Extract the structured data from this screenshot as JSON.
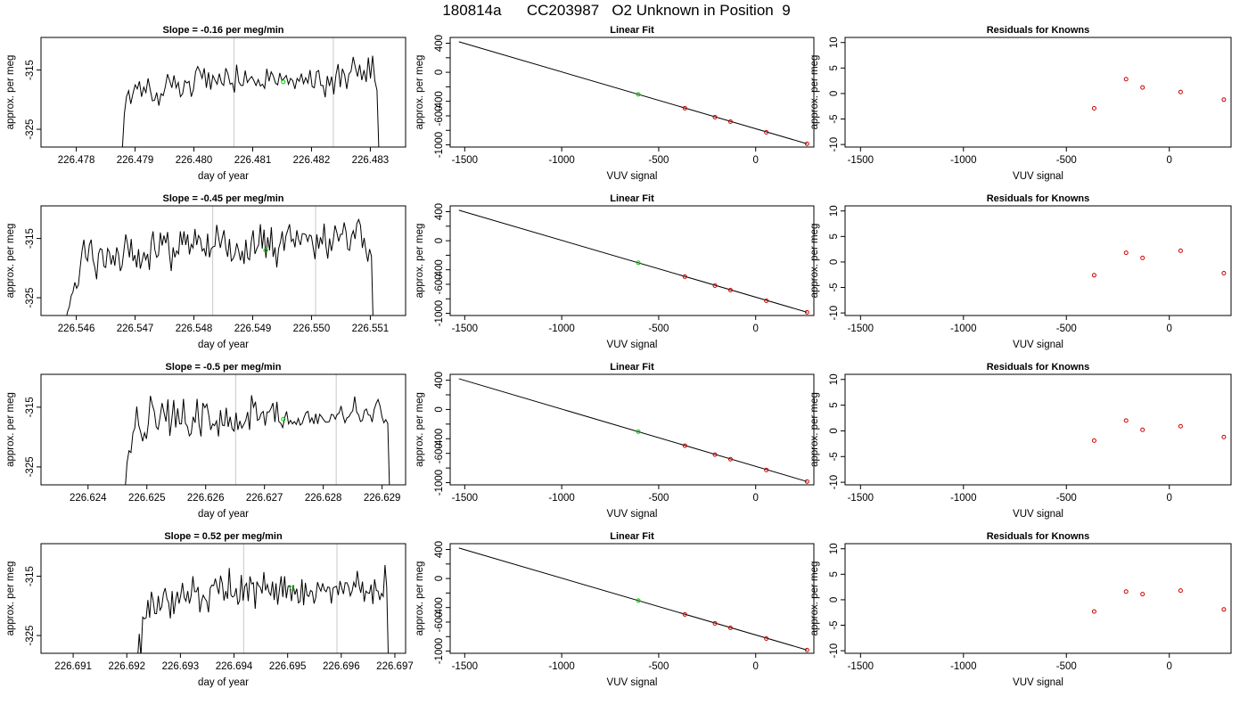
{
  "title": "180814a      CC203987   O2 Unknown in Position  9",
  "colors": {
    "line": "#000000",
    "known": "#cc0000",
    "unknown": "#00cc00",
    "vline": "#c8c8c8"
  },
  "chart_data": [
    {
      "type": "line",
      "panel": "time-1",
      "title": "Slope =  -0.16  per meg/min",
      "xlabel": "day of year",
      "ylabel": "approx. per meg",
      "xlim": [
        226.4774,
        226.4836
      ],
      "ylim": [
        -328.0,
        -309.5
      ],
      "xticks": [
        "226.478",
        "226.479",
        "226.480",
        "226.481",
        "226.482",
        "226.483"
      ],
      "yticks": [
        "-315",
        "-325"
      ],
      "vlines": [
        226.48068,
        226.48237
      ],
      "marker": {
        "x": 226.48152,
        "y": -317.0
      },
      "start": 226.47878,
      "end": 226.48315,
      "series_values": [
        -329.0,
        -322.4,
        -319.5,
        -318.5,
        -320.7,
        -319.0,
        -317.5,
        -318.2,
        -316.9,
        -319.5,
        -317.9,
        -318.8,
        -316.4,
        -318.3,
        -320.2,
        -320.1,
        -318.8,
        -321.0,
        -319.0,
        -319.3,
        -317.8,
        -315.7,
        -316.8,
        -318.0,
        -315.9,
        -318.0,
        -317.1,
        -319.5,
        -319.0,
        -316.8,
        -317.2,
        -316.9,
        -319.5,
        -318.3,
        -315.3,
        -314.4,
        -315.2,
        -316.4,
        -314.7,
        -318.0,
        -315.4,
        -318.3,
        -315.9,
        -316.7,
        -317.4,
        -315.6,
        -317.2,
        -317.6,
        -314.7,
        -315.6,
        -317.4,
        -317.2,
        -318.8,
        -314.1,
        -317.0,
        -317.6,
        -317.6,
        -315.1,
        -317.1,
        -316.5,
        -316.1,
        -316.8,
        -317.6,
        -316.6,
        -317.7,
        -317.4,
        -318.1,
        -314.8,
        -316.9,
        -315.3,
        -316.0,
        -317.2,
        -317.5,
        -315.5,
        -316.8,
        -316.4,
        -315.9,
        -317.4,
        -316.4,
        -316.8,
        -318.2,
        -316.4,
        -316.9,
        -315.6,
        -317.3,
        -316.3,
        -317.2,
        -315.0,
        -317.8,
        -318.0,
        -315.3,
        -315.1,
        -317.6,
        -317.6,
        -319.6,
        -316.0,
        -317.7,
        -316.1,
        -319.1,
        -315.8,
        -314.0,
        -317.9,
        -314.8,
        -315.8,
        -318.2,
        -315.7,
        -315.2,
        -312.8,
        -314.6,
        -316.1,
        -314.1,
        -316.7,
        -315.0,
        -317.0,
        -312.9,
        -316.4,
        -312.6,
        -316.8,
        -318.4,
        -330.0
      ]
    },
    {
      "type": "scatter",
      "panel": "fit-1",
      "title": "Linear Fit",
      "xlabel": "VUV signal",
      "ylabel": "approx. per meg",
      "xlim": [
        -1575,
        300
      ],
      "ylim": [
        -1030,
        480
      ],
      "xticks": [
        "-1500",
        "-1000",
        "-500",
        "0"
      ],
      "yticks": [
        "-1000",
        "-800",
        "-600",
        "-400",
        "-200",
        "0",
        "200",
        "400"
      ],
      "yticks_labeled": [
        "-1000",
        "-600",
        "-400",
        "0",
        "400"
      ],
      "fit_line": {
        "x": [
          -1530,
          265
        ],
        "y": [
          420,
          -985
        ]
      },
      "knowns": {
        "x": [
          -365,
          -210,
          -130,
          55,
          265
        ],
        "y": [
          -495,
          -618,
          -680,
          -827,
          -985
        ]
      },
      "unknown": {
        "x": [
          -605,
          -315
        ]
      }
    },
    {
      "type": "scatter",
      "panel": "resid-1",
      "title": "Residuals for Knowns",
      "xlabel": "VUV signal",
      "ylabel": "approx. per meg",
      "xlim": [
        -1575,
        300
      ],
      "ylim": [
        -10.5,
        11
      ],
      "xticks": [
        "-1500",
        "-1000",
        "-500",
        "0"
      ],
      "yticks": [
        "-10",
        "-5",
        "0",
        "5",
        "10"
      ],
      "x": [
        -365,
        -210,
        -130,
        55,
        265
      ],
      "y": [
        -2.9,
        2.8,
        1.2,
        0.3,
        -1.2
      ]
    },
    {
      "type": "line",
      "panel": "time-2",
      "title": "Slope =  -0.45  per meg/min",
      "xlabel": "day of year",
      "ylabel": "approx. per meg",
      "xlim": [
        226.5454,
        226.5516
      ],
      "ylim": [
        -328.0,
        -309.5
      ],
      "xticks": [
        "226.546",
        "226.547",
        "226.548",
        "226.549",
        "226.550",
        "226.551"
      ],
      "yticks": [
        "-315",
        "-325"
      ],
      "vlines": [
        226.54832,
        226.55007
      ],
      "marker": {
        "x": 226.54922,
        "y": -317.0
      },
      "start": 226.54582,
      "end": 226.55105,
      "series_values": [
        -329.0,
        -327.4,
        -326.5,
        -324.7,
        -324.0,
        -322.4,
        -323.4,
        -322.8,
        -319.8,
        -317.0,
        -315.2,
        -318.2,
        -318.8,
        -316.1,
        -315.2,
        -318.6,
        -319.9,
        -321.9,
        -317.6,
        -316.7,
        -316.9,
        -319.7,
        -319.9,
        -316.7,
        -317.3,
        -319.4,
        -317.8,
        -319.6,
        -316.5,
        -317.6,
        -320.5,
        -319.6,
        -317.0,
        -314.3,
        -316.0,
        -318.2,
        -315.1,
        -318.8,
        -317.8,
        -319.9,
        -316.8,
        -320.1,
        -318.8,
        -317.3,
        -318.6,
        -317.6,
        -320.3,
        -315.5,
        -313.8,
        -316.9,
        -318.2,
        -317.8,
        -314.0,
        -316.2,
        -314.5,
        -315.8,
        -313.9,
        -317.7,
        -320.5,
        -316.5,
        -318.2,
        -317.1,
        -317.6,
        -313.8,
        -316.1,
        -313.8,
        -316.1,
        -314.3,
        -317.7,
        -316.0,
        -316.6,
        -313.4,
        -316.1,
        -314.5,
        -315.1,
        -317.1,
        -316.7,
        -318.0,
        -314.2,
        -318.2,
        -316.7,
        -316.4,
        -316.3,
        -312.7,
        -314.8,
        -316.6,
        -314.9,
        -313.6,
        -316.7,
        -318.1,
        -315.1,
        -318.8,
        -318.4,
        -317.6,
        -315.8,
        -317.0,
        -318.7,
        -317.1,
        -319.3,
        -315.2,
        -318.3,
        -318.6,
        -315.5,
        -313.6,
        -317.6,
        -316.7,
        -316.1,
        -312.6,
        -316.7,
        -313.5,
        -318.3,
        -314.8,
        -317.0,
        -313.1,
        -318.1,
        -316.5,
        -319.9,
        -316.7,
        -315.6,
        -313.8,
        -317.1,
        -314.6,
        -313.6,
        -312.6,
        -315.5,
        -315.1,
        -316.5,
        -313.6,
        -315.2,
        -316.1,
        -314.2,
        -314.2,
        -314.4,
        -315.5,
        -314.4,
        -314.6,
        -316.5,
        -318.5,
        -314.3,
        -316.7,
        -314.8,
        -316.0,
        -312.5,
        -316.3,
        -318.4,
        -315.0,
        -317.1,
        -315.4,
        -312.8,
        -314.0,
        -315.5,
        -314.3,
        -314.3,
        -312.3,
        -313.8,
        -316.8,
        -317.0,
        -314.6,
        -313.7,
        -315.1,
        -312.5,
        -311.8,
        -312.8,
        -316.6,
        -314.9,
        -317.2,
        -318.9,
        -316.8,
        -318.0,
        -330.0
      ]
    },
    {
      "type": "scatter",
      "panel": "fit-2",
      "title": "Linear Fit",
      "xlabel": "VUV signal",
      "ylabel": "approx. per meg",
      "xlim": [
        -1575,
        300
      ],
      "ylim": [
        -1030,
        480
      ],
      "xticks": [
        "-1500",
        "-1000",
        "-500",
        "0"
      ],
      "yticks": [
        "-1000",
        "-800",
        "-600",
        "-400",
        "-200",
        "0",
        "200",
        "400"
      ],
      "yticks_labeled": [
        "-1000",
        "-600",
        "-400",
        "0",
        "400"
      ],
      "fit_line": {
        "x": [
          -1530,
          265
        ],
        "y": [
          420,
          -985
        ]
      },
      "knowns": {
        "x": [
          -365,
          -210,
          -130,
          55,
          265
        ],
        "y": [
          -495,
          -618,
          -680,
          -827,
          -985
        ]
      },
      "unknown": {
        "x": [
          -605,
          -315
        ]
      }
    },
    {
      "type": "scatter",
      "panel": "resid-2",
      "title": "Residuals for Knowns",
      "xlabel": "VUV signal",
      "ylabel": "approx. per meg",
      "xlim": [
        -1575,
        300
      ],
      "ylim": [
        -10.5,
        11
      ],
      "xticks": [
        "-1500",
        "-1000",
        "-500",
        "0"
      ],
      "yticks": [
        "-10",
        "-5",
        "0",
        "5",
        "10"
      ],
      "x": [
        -365,
        -210,
        -130,
        55,
        265
      ],
      "y": [
        -2.6,
        1.8,
        0.8,
        2.2,
        -2.2
      ]
    },
    {
      "type": "line",
      "panel": "time-3",
      "title": "Slope =  -0.5  per meg/min",
      "xlabel": "day of year",
      "ylabel": "approx. per meg",
      "xlim": [
        226.6232,
        226.6294
      ],
      "ylim": [
        -328.0,
        -309.5
      ],
      "xticks": [
        "226.624",
        "226.625",
        "226.626",
        "226.627",
        "226.628",
        "226.629"
      ],
      "yticks": [
        "-315",
        "-325"
      ],
      "vlines": [
        226.62651,
        226.62822
      ],
      "marker": {
        "x": 226.62732,
        "y": -317.0
      },
      "start": 226.62463,
      "end": 226.62913,
      "series_values": [
        -329.0,
        -324.3,
        -322.3,
        -322.6,
        -319.3,
        -318.5,
        -314.9,
        -318.0,
        -319.2,
        -320.7,
        -319.3,
        -320.3,
        -317.6,
        -313.1,
        -314.6,
        -315.7,
        -318.3,
        -318.7,
        -316.6,
        -314.3,
        -315.9,
        -317.4,
        -313.7,
        -319.8,
        -317.1,
        -313.8,
        -318.4,
        -315.2,
        -317.8,
        -317.8,
        -313.6,
        -317.7,
        -318.2,
        -319.8,
        -319.4,
        -316.6,
        -317.6,
        -313.6,
        -317.9,
        -319.9,
        -314.3,
        -315.1,
        -314.5,
        -316.3,
        -318.8,
        -317.8,
        -318.1,
        -317.3,
        -319.9,
        -315.5,
        -318.0,
        -318.1,
        -315.1,
        -318.3,
        -316.6,
        -318.6,
        -319.0,
        -315.9,
        -318.8,
        -317.3,
        -318.5,
        -317.9,
        -317.2,
        -315.8,
        -318.8,
        -313.0,
        -315.0,
        -314.1,
        -317.2,
        -317.0,
        -316.0,
        -315.7,
        -318.1,
        -315.8,
        -315.8,
        -315.2,
        -314.3,
        -317.5,
        -314.1,
        -317.4,
        -317.7,
        -318.4,
        -316.8,
        -315.7,
        -317.8,
        -317.2,
        -317.8,
        -317.4,
        -317.9,
        -316.9,
        -318.0,
        -317.7,
        -316.7,
        -315.9,
        -315.7,
        -317.5,
        -316.8,
        -317.8,
        -316.1,
        -317.8,
        -316.2,
        -316.6,
        -317.1,
        -317.5,
        -317.5,
        -317.4,
        -316.2,
        -316.3,
        -317.0,
        -316.2,
        -316.0,
        -314.8,
        -316.4,
        -317.6,
        -316.8,
        -316.6,
        -316.0,
        -315.6,
        -313.2,
        -315.8,
        -316.3,
        -317.4,
        -317.2,
        -315.6,
        -315.3,
        -316.3,
        -316.4,
        -317.5,
        -315.4,
        -314.4,
        -313.7,
        -314.8,
        -316.6,
        -317.6,
        -317.1,
        -317.7,
        -330.0
      ]
    },
    {
      "type": "scatter",
      "panel": "fit-3",
      "title": "Linear Fit",
      "xlabel": "VUV signal",
      "ylabel": "approx. per meg",
      "xlim": [
        -1575,
        300
      ],
      "ylim": [
        -1030,
        480
      ],
      "xticks": [
        "-1500",
        "-1000",
        "-500",
        "0"
      ],
      "yticks": [
        "-1000",
        "-800",
        "-600",
        "-400",
        "-200",
        "0",
        "200",
        "400"
      ],
      "yticks_labeled": [
        "-1000",
        "-600",
        "-400",
        "0",
        "400"
      ],
      "fit_line": {
        "x": [
          -1530,
          265
        ],
        "y": [
          420,
          -985
        ]
      },
      "knowns": {
        "x": [
          -365,
          -210,
          -130,
          55,
          265
        ],
        "y": [
          -495,
          -618,
          -680,
          -827,
          -985
        ]
      },
      "unknown": {
        "x": [
          -605,
          -315
        ]
      }
    },
    {
      "type": "scatter",
      "panel": "resid-3",
      "title": "Residuals for Knowns",
      "xlabel": "VUV signal",
      "ylabel": "approx. per meg",
      "xlim": [
        -1575,
        300
      ],
      "ylim": [
        -10.5,
        11
      ],
      "xticks": [
        "-1500",
        "-1000",
        "-500",
        "0"
      ],
      "yticks": [
        "-10",
        "-5",
        "0",
        "5",
        "10"
      ],
      "x": [
        -365,
        -210,
        -130,
        55,
        265
      ],
      "y": [
        -1.9,
        2.0,
        0.2,
        0.9,
        -1.2
      ]
    },
    {
      "type": "line",
      "panel": "time-4",
      "title": "Slope =  0.52  per meg/min",
      "xlabel": "day of year",
      "ylabel": "approx. per meg",
      "xlim": [
        226.6904,
        226.6972
      ],
      "ylim": [
        -328.0,
        -309.5
      ],
      "xticks": [
        "226.691",
        "226.692",
        "226.693",
        "226.694",
        "226.695",
        "226.696",
        "226.697"
      ],
      "yticks": [
        "-315",
        "-325"
      ],
      "vlines": [
        226.69418,
        226.69592
      ],
      "marker": {
        "x": 226.69508,
        "y": -317.0
      },
      "start": 226.6922,
      "end": 226.69688,
      "series_values": [
        -329.0,
        -324.7,
        -328.6,
        -321.9,
        -322.2,
        -322.0,
        -319.0,
        -322.0,
        -317.6,
        -319.0,
        -321.3,
        -321.3,
        -318.3,
        -320.7,
        -320.2,
        -317.9,
        -317.0,
        -318.8,
        -319.5,
        -322.1,
        -317.5,
        -321.4,
        -319.1,
        -317.6,
        -319.6,
        -318.2,
        -316.1,
        -318.6,
        -319.2,
        -317.5,
        -319.6,
        -318.3,
        -315.0,
        -317.6,
        -317.6,
        -316.8,
        -321.1,
        -319.2,
        -318.2,
        -318.8,
        -319.2,
        -321.1,
        -317.0,
        -316.5,
        -316.6,
        -315.4,
        -316.8,
        -318.0,
        -314.9,
        -316.2,
        -319.1,
        -317.5,
        -318.8,
        -313.6,
        -318.2,
        -318.5,
        -318.3,
        -317.0,
        -319.8,
        -319.1,
        -314.8,
        -319.1,
        -316.7,
        -316.2,
        -319.2,
        -315.0,
        -316.3,
        -316.1,
        -320.5,
        -315.9,
        -316.6,
        -316.9,
        -317.9,
        -314.3,
        -317.4,
        -316.4,
        -317.7,
        -318.2,
        -315.9,
        -319.0,
        -316.2,
        -319.8,
        -317.2,
        -315.0,
        -318.5,
        -315.0,
        -318.7,
        -316.7,
        -316.6,
        -319.2,
        -316.5,
        -318.1,
        -317.1,
        -319.5,
        -319.2,
        -315.5,
        -319.9,
        -316.1,
        -318.2,
        -318.4,
        -317.4,
        -317.6,
        -319.6,
        -318.6,
        -316.0,
        -316.9,
        -317.5,
        -316.2,
        -317.3,
        -317.6,
        -316.8,
        -316.9,
        -319.6,
        -317.0,
        -316.8,
        -316.7,
        -318.2,
        -315.8,
        -316.9,
        -318.0,
        -316.1,
        -316.1,
        -316.8,
        -318.3,
        -317.5,
        -316.0,
        -316.9,
        -314.1,
        -316.5,
        -317.8,
        -315.9,
        -319.3,
        -317.5,
        -317.8,
        -317.9,
        -316.4,
        -319.7,
        -315.5,
        -317.4,
        -317.5,
        -319.0,
        -317.9,
        -318.4,
        -313.1,
        -316.8,
        -330.0
      ]
    },
    {
      "type": "scatter",
      "panel": "fit-4",
      "title": "Linear Fit",
      "xlabel": "VUV signal",
      "ylabel": "approx. per meg",
      "xlim": [
        -1575,
        300
      ],
      "ylim": [
        -1030,
        480
      ],
      "xticks": [
        "-1500",
        "-1000",
        "-500",
        "0"
      ],
      "yticks": [
        "-1000",
        "-800",
        "-600",
        "-400",
        "-200",
        "0",
        "200",
        "400"
      ],
      "yticks_labeled": [
        "-1000",
        "-600",
        "-400",
        "0",
        "400"
      ],
      "fit_line": {
        "x": [
          -1530,
          265
        ],
        "y": [
          420,
          -985
        ]
      },
      "knowns": {
        "x": [
          -365,
          -210,
          -130,
          55,
          265
        ],
        "y": [
          -495,
          -618,
          -680,
          -827,
          -985
        ]
      },
      "unknown": {
        "x": [
          -605,
          -315
        ]
      }
    },
    {
      "type": "scatter",
      "panel": "resid-4",
      "title": "Residuals for Knowns",
      "xlabel": "VUV signal",
      "ylabel": "approx. per meg",
      "xlim": [
        -1575,
        300
      ],
      "ylim": [
        -10.5,
        11
      ],
      "xticks": [
        "-1500",
        "-1000",
        "-500",
        "0"
      ],
      "yticks": [
        "-10",
        "-5",
        "0",
        "5",
        "10"
      ],
      "x": [
        -365,
        -210,
        -130,
        55,
        265
      ],
      "y": [
        -2.3,
        1.6,
        1.1,
        1.8,
        -1.9
      ]
    }
  ]
}
